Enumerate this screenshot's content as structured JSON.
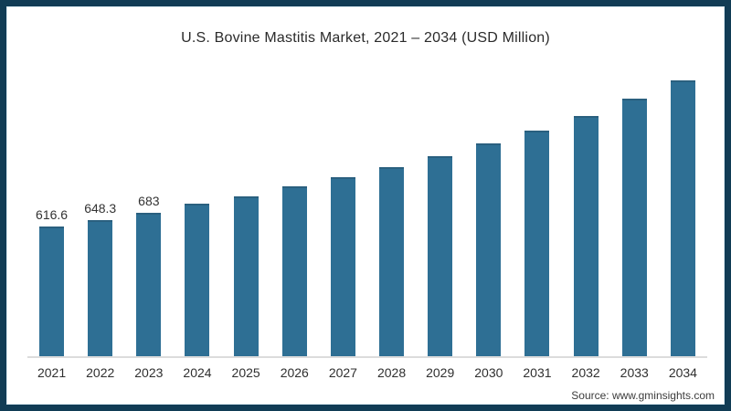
{
  "title": "U.S. Bovine Mastitis Market, 2021 – 2034 (USD Million)",
  "source": "Source: www.gminsights.com",
  "colors": {
    "bar_fill": "#2e6f94",
    "bar_edge": "#2a607f",
    "frame_border": "#113c55",
    "frame_inner_line": "#d9eaf3",
    "baseline": "#dcdcdc",
    "title_text": "#2b2b2b",
    "label_text": "#333333"
  },
  "chart_data": {
    "type": "bar",
    "title": "U.S. Bovine Mastitis Market, 2021 – 2034 (USD Million)",
    "ylabel": "USD Million",
    "xlabel": "",
    "categories": [
      "2021",
      "2022",
      "2023",
      "2024",
      "2025",
      "2026",
      "2027",
      "2028",
      "2029",
      "2030",
      "2031",
      "2032",
      "2033",
      "2034"
    ],
    "values": [
      616.6,
      648.3,
      683,
      724,
      762,
      808,
      851,
      898,
      952,
      1010,
      1071,
      1143,
      1223,
      1313
    ],
    "data_labels": [
      "616.6",
      "648.3",
      "683",
      null,
      null,
      null,
      null,
      null,
      null,
      null,
      null,
      null,
      null,
      null
    ],
    "ylim": [
      0,
      1430
    ],
    "grid": false,
    "legend": "none",
    "note": "Only the first three bars carry printed data labels; remaining values estimated from bar heights."
  }
}
